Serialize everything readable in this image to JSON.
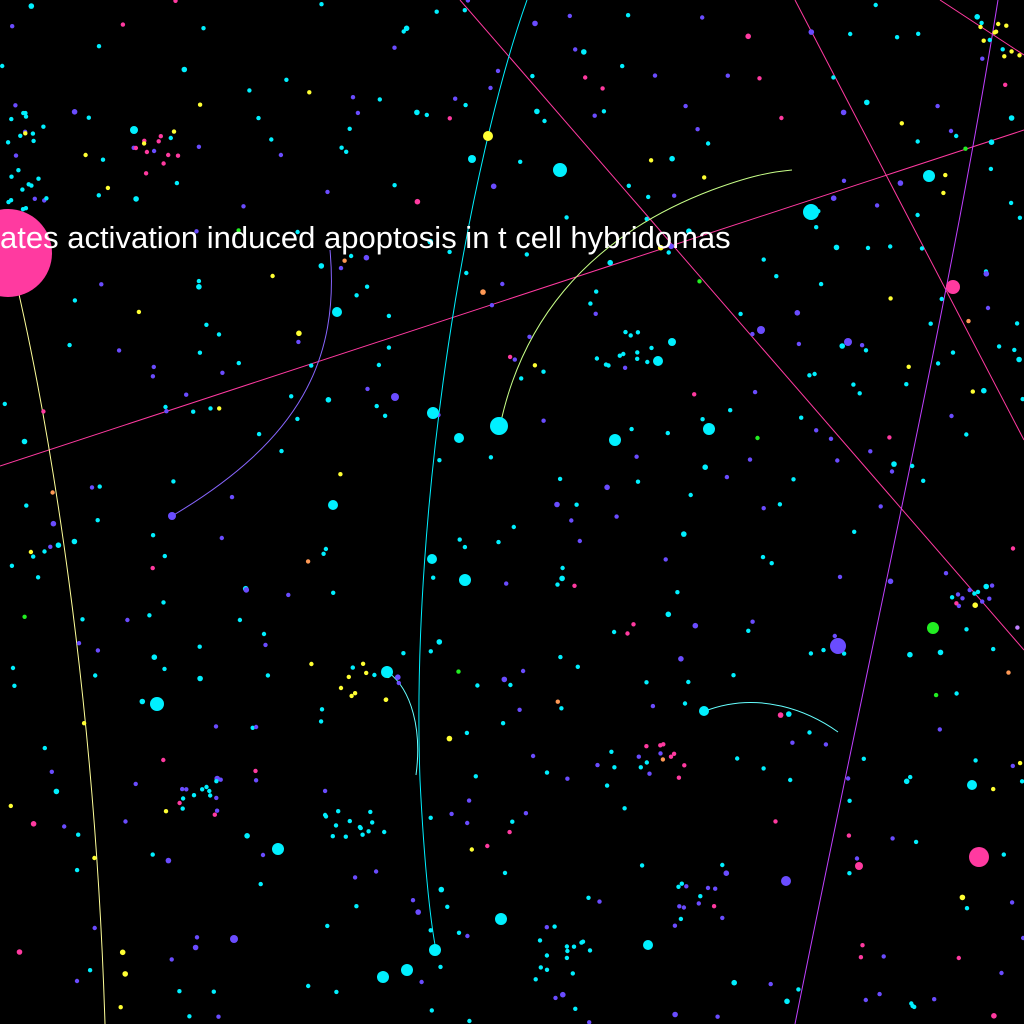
{
  "graph": {
    "background": "#000000",
    "highlighted_label": "ates activation induced apoptosis in t cell hybridomas",
    "palette": {
      "cyan": "#00f0ff",
      "violet": "#6a4cff",
      "pink": "#ff3aa0",
      "yellow": "#ffff33",
      "green": "#22ee22",
      "orange": "#ff9955",
      "lilac": "#c080ff"
    },
    "edge_colors": [
      "#ff3aa0",
      "#00f0ff",
      "#c040ff",
      "#ffff99",
      "#8866ff",
      "#c8ff88",
      "#66ffff"
    ]
  }
}
